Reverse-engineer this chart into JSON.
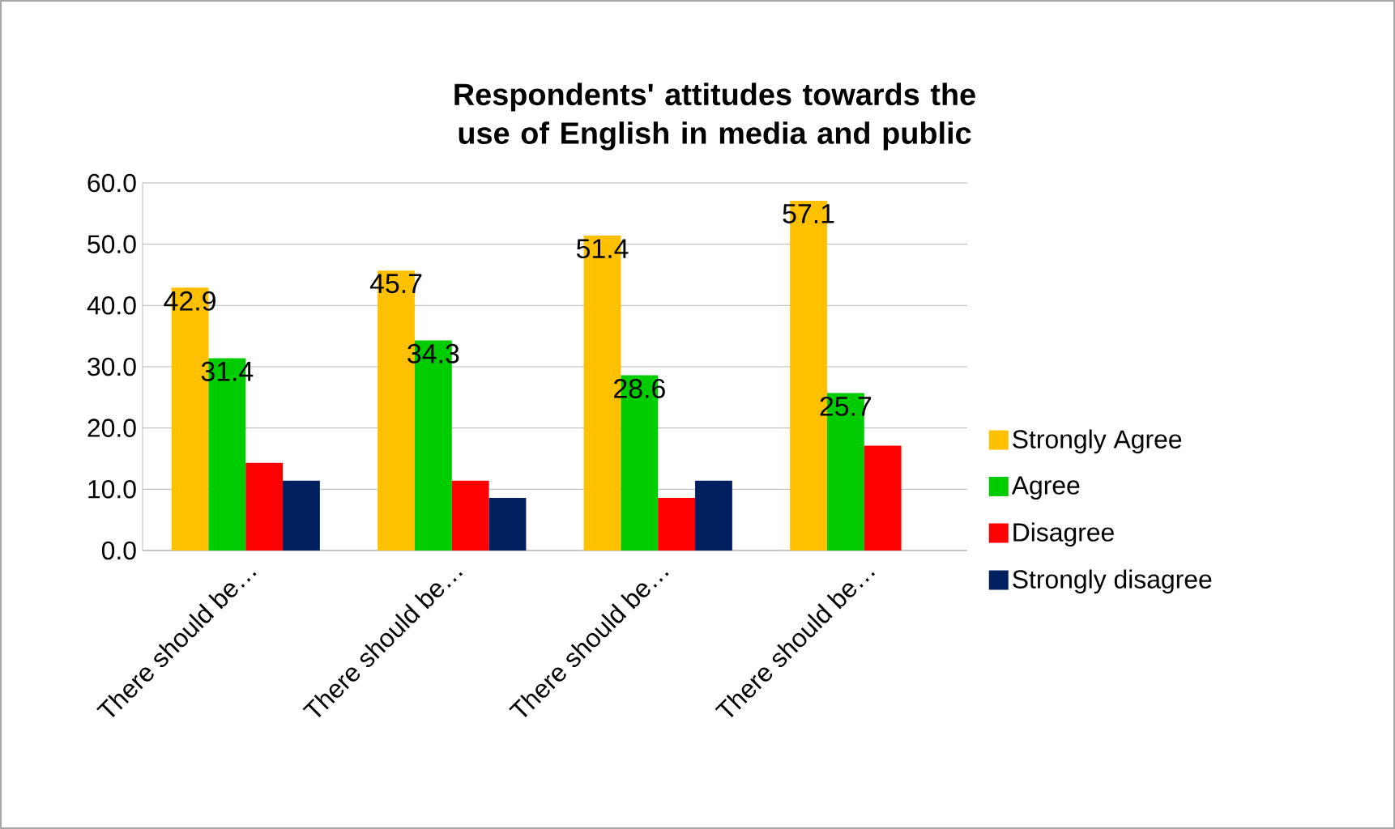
{
  "chart_data": {
    "type": "bar",
    "title": "Respondents' attitudes towards the use of English in media and public",
    "categories": [
      "There should be…",
      "There should be…",
      "There should be…",
      "There should be…"
    ],
    "series": [
      {
        "name": "Strongly Agree",
        "color": "#ffc000",
        "values": [
          42.9,
          45.7,
          51.4,
          57.1
        ],
        "value_labels": [
          "42.9",
          "45.7",
          "51.4",
          "57.1"
        ]
      },
      {
        "name": "Agree",
        "color": "#00cc00",
        "values": [
          31.4,
          34.3,
          28.6,
          25.7
        ],
        "value_labels": [
          "31.4",
          "34.3",
          "28.6",
          "25.7"
        ]
      },
      {
        "name": "Disagree",
        "color": "#ff0000",
        "values": [
          14.3,
          11.4,
          8.6,
          17.1
        ]
      },
      {
        "name": "Strongly disagree",
        "color": "#002060",
        "values": [
          11.4,
          8.6,
          11.4,
          0
        ]
      }
    ],
    "ylim": [
      0,
      60
    ],
    "yticks": [
      {
        "value": 0,
        "label": "0.0"
      },
      {
        "value": 10,
        "label": "10.0"
      },
      {
        "value": 20,
        "label": "20.0"
      },
      {
        "value": 30,
        "label": "30.0"
      },
      {
        "value": 40,
        "label": "40.0"
      },
      {
        "value": 50,
        "label": "50.0"
      },
      {
        "value": 60,
        "label": "60.0"
      }
    ],
    "grid": "y",
    "legend": "right"
  }
}
